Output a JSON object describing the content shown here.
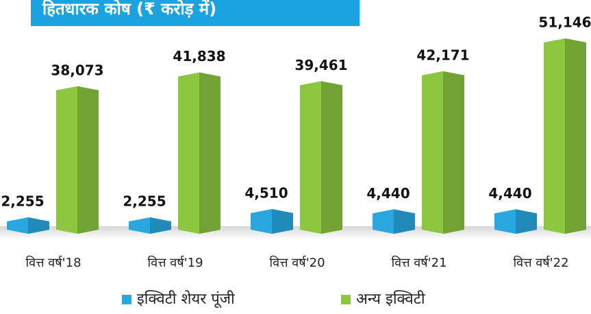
{
  "chart_data": {
    "type": "bar3d",
    "title": "हितधारक कोष (₹ करोड़ में)",
    "categories": [
      "वित्त वर्ष'18",
      "वित्त वर्ष'19",
      "वित्त वर्ष'20",
      "वित्त वर्ष'21",
      "वित्त वर्ष'22"
    ],
    "series": [
      {
        "name": "इक्विटी शेयर पूंजी",
        "color": "#29a8e0",
        "values": [
          2255,
          2255,
          4510,
          4440,
          4440
        ],
        "value_labels": [
          "2,255",
          "2,255",
          "4,510",
          "4,440",
          "4,440"
        ]
      },
      {
        "name": "अन्य इक्विटी",
        "color": "#8cc63f",
        "values": [
          38073,
          41838,
          39461,
          42171,
          51146
        ],
        "value_labels": [
          "38,073",
          "41,838",
          "39,461",
          "42,171",
          "51,146"
        ]
      }
    ],
    "legend": "bottom"
  }
}
